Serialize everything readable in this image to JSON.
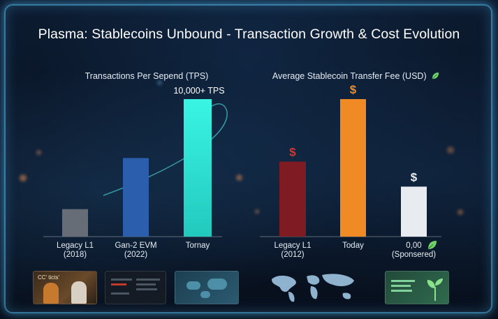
{
  "title": "Plasma: Stablecoins Unbound - Transaction Growth & Cost Evolution",
  "icons": {
    "leaf": "leaf-icon",
    "dollar": "dollar-icon"
  },
  "colors": {
    "legacy_tps": "#666d76",
    "gen2_tps": "#2b5fad",
    "today_tps": "#2ee6d6",
    "legacy_fee": "#7f1b22",
    "today_fee": "#f08a24",
    "sponsored_fee": "#e8ecf1",
    "leaf": "#6fd36a"
  },
  "chart_data": [
    {
      "type": "bar",
      "title": "Transactions Per Sepend (TPS)",
      "categories": [
        "Legacy L1\n(2018)",
        "Gan-2 EVM\n(2022)",
        "Tornay"
      ],
      "values": [
        700,
        2000,
        3500
      ],
      "annotations": [
        "10,000+ TPS"
      ],
      "ylim": [
        0,
        3500
      ],
      "grid": false,
      "legend": "none"
    },
    {
      "type": "bar",
      "title": "Average Stablecoin Transfer Fee (USD)",
      "categories": [
        "Legacy L1\n(2012)",
        "Today",
        "0,00\n(Sponsered)"
      ],
      "values": [
        1.8,
        3.3,
        1.2
      ],
      "annotations": [
        "$",
        "$",
        "$"
      ],
      "ylim": [
        0,
        3.3
      ],
      "grid": false,
      "legend": "none"
    }
  ],
  "thumbnails": [
    {
      "caption": "CC' ticts'"
    },
    {
      "caption": ""
    },
    {
      "caption": ""
    },
    {
      "caption": ""
    },
    {
      "caption": ""
    }
  ]
}
